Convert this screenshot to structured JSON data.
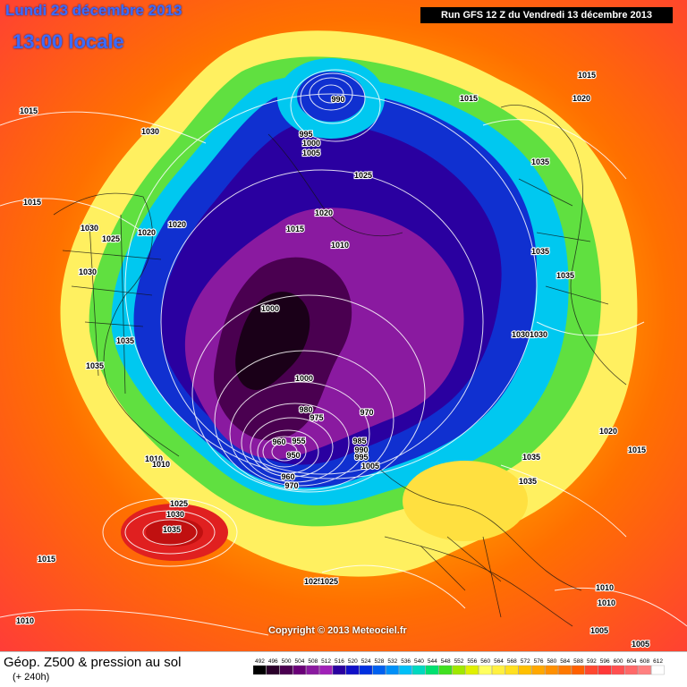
{
  "header": {
    "date_line": "Lundi 23 décembre 2013",
    "time_line": "13:00 locale",
    "run_info": "Run GFS 12 Z du Vendredi 13 décembre 2013"
  },
  "copyright": "Copyright © 2013 Meteociel.fr",
  "footer": {
    "title": "Géop. Z500 & pression au sol",
    "subtitle": "(+ 240h)"
  },
  "legend": {
    "values": [
      "492",
      "496",
      "500",
      "504",
      "508",
      "512",
      "516",
      "520",
      "524",
      "528",
      "532",
      "536",
      "540",
      "544",
      "548",
      "552",
      "556",
      "560",
      "564",
      "568",
      "572",
      "576",
      "580",
      "584",
      "588",
      "592",
      "596",
      "600",
      "604",
      "608",
      "612"
    ],
    "colors": [
      "#000000",
      "#2a002a",
      "#4a0050",
      "#6a0078",
      "#8a1aa0",
      "#a020b8",
      "#2a00a0",
      "#1010c8",
      "#0030e0",
      "#0060f0",
      "#0090f8",
      "#00c0f8",
      "#00d8c0",
      "#00e070",
      "#40e020",
      "#a0e800",
      "#e0f000",
      "#ffff60",
      "#fff040",
      "#ffe020",
      "#ffc000",
      "#ffa800",
      "#ff9000",
      "#ff7800",
      "#ff6000",
      "#ff4830",
      "#ff3838",
      "#ff5050",
      "#ff6868",
      "#ff8080",
      "#ffffff"
    ]
  },
  "pressure_labels": [
    {
      "text": "1015"
    },
    {
      "text": "1030"
    },
    {
      "text": "1015"
    },
    {
      "text": "1030"
    },
    {
      "text": "1025"
    },
    {
      "text": "1020"
    },
    {
      "text": "1020"
    },
    {
      "text": "1030"
    },
    {
      "text": "1035"
    },
    {
      "text": "1035"
    },
    {
      "text": "1010"
    },
    {
      "text": "1010"
    },
    {
      "text": "1025"
    },
    {
      "text": "1030"
    },
    {
      "text": "1035"
    },
    {
      "text": "1015"
    },
    {
      "text": "1010"
    },
    {
      "text": "995"
    },
    {
      "text": "1000"
    },
    {
      "text": "1005"
    },
    {
      "text": "990"
    },
    {
      "text": "1025"
    },
    {
      "text": "1020"
    },
    {
      "text": "1015"
    },
    {
      "text": "1010"
    },
    {
      "text": "1000"
    },
    {
      "text": "1000"
    },
    {
      "text": "980"
    },
    {
      "text": "975"
    },
    {
      "text": "970"
    },
    {
      "text": "960"
    },
    {
      "text": "955"
    },
    {
      "text": "950"
    },
    {
      "text": "960"
    },
    {
      "text": "970"
    },
    {
      "text": "985"
    },
    {
      "text": "990"
    },
    {
      "text": "995"
    },
    {
      "text": "1005"
    },
    {
      "text": "1025"
    },
    {
      "text": "1015"
    },
    {
      "text": "1020"
    },
    {
      "text": "1015"
    },
    {
      "text": "1035"
    },
    {
      "text": "1035"
    },
    {
      "text": "1035"
    },
    {
      "text": "1030"
    },
    {
      "text": "1030"
    },
    {
      "text": "1020"
    },
    {
      "text": "1015"
    },
    {
      "text": "1035"
    },
    {
      "text": "1035"
    },
    {
      "text": "1010"
    },
    {
      "text": "1010"
    },
    {
      "text": "1005"
    },
    {
      "text": "1005"
    },
    {
      "text": "1025"
    },
    {
      "text": "1010"
    },
    {
      "text": "1015"
    }
  ]
}
